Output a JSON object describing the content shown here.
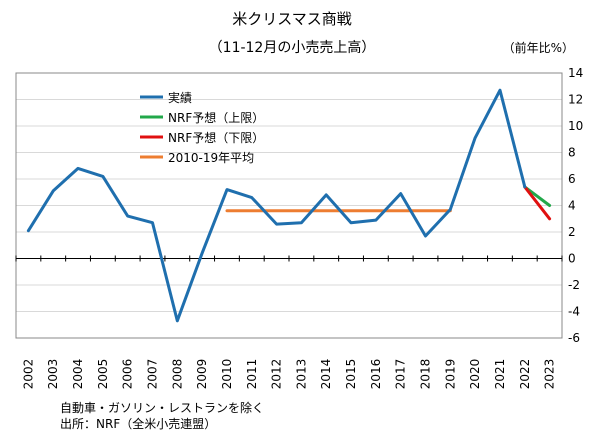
{
  "chart_data": {
    "type": "line",
    "title": "米クリスマス商戦",
    "subtitle": "（11-12月の小売売上高）",
    "unit_label": "（前年比%）",
    "x": [
      "2002",
      "2003",
      "2004",
      "2005",
      "2006",
      "2007",
      "2008",
      "2009",
      "2010",
      "2011",
      "2012",
      "2013",
      "2014",
      "2015",
      "2016",
      "2017",
      "2018",
      "2019",
      "2020",
      "2021",
      "2022",
      "2023"
    ],
    "y_ticks": [
      "14",
      "12",
      "10",
      "8",
      "6",
      "4",
      "2",
      "0",
      "-2",
      "-4",
      "-6"
    ],
    "ylim": [
      -6,
      14
    ],
    "y_axis_position": "right",
    "grid": true,
    "legend_position": "top-left",
    "series": [
      {
        "name": "実績",
        "color": "#1f6fae",
        "points": [
          {
            "x": "2002",
            "y": 2.1
          },
          {
            "x": "2003",
            "y": 5.1
          },
          {
            "x": "2004",
            "y": 6.8
          },
          {
            "x": "2005",
            "y": 6.2
          },
          {
            "x": "2006",
            "y": 3.2
          },
          {
            "x": "2007",
            "y": 2.7
          },
          {
            "x": "2008",
            "y": -4.7
          },
          {
            "x": "2009",
            "y": 0.4
          },
          {
            "x": "2010",
            "y": 5.2
          },
          {
            "x": "2011",
            "y": 4.6
          },
          {
            "x": "2012",
            "y": 2.6
          },
          {
            "x": "2013",
            "y": 2.7
          },
          {
            "x": "2014",
            "y": 4.8
          },
          {
            "x": "2015",
            "y": 2.7
          },
          {
            "x": "2016",
            "y": 2.9
          },
          {
            "x": "2017",
            "y": 4.9
          },
          {
            "x": "2018",
            "y": 1.7
          },
          {
            "x": "2019",
            "y": 3.7
          },
          {
            "x": "2020",
            "y": 9.1
          },
          {
            "x": "2021",
            "y": 12.7
          },
          {
            "x": "2022",
            "y": 5.4
          }
        ]
      },
      {
        "name": "NRF予想（上限）",
        "color": "#22a84a",
        "points": [
          {
            "x": "2022",
            "y": 5.4
          },
          {
            "x": "2023",
            "y": 4.0
          }
        ]
      },
      {
        "name": "NRF予想（下限）",
        "color": "#e01010",
        "points": [
          {
            "x": "2022",
            "y": 5.4
          },
          {
            "x": "2023",
            "y": 3.0
          }
        ]
      },
      {
        "name": "2010-19年平均",
        "color": "#ed7d31",
        "points": [
          {
            "x": "2010",
            "y": 3.6
          },
          {
            "x": "2019",
            "y": 3.6
          }
        ]
      }
    ]
  },
  "notes": [
    "自動車・ガソリン・レストランを除く",
    "出所：NRF（全米小売連盟）"
  ]
}
